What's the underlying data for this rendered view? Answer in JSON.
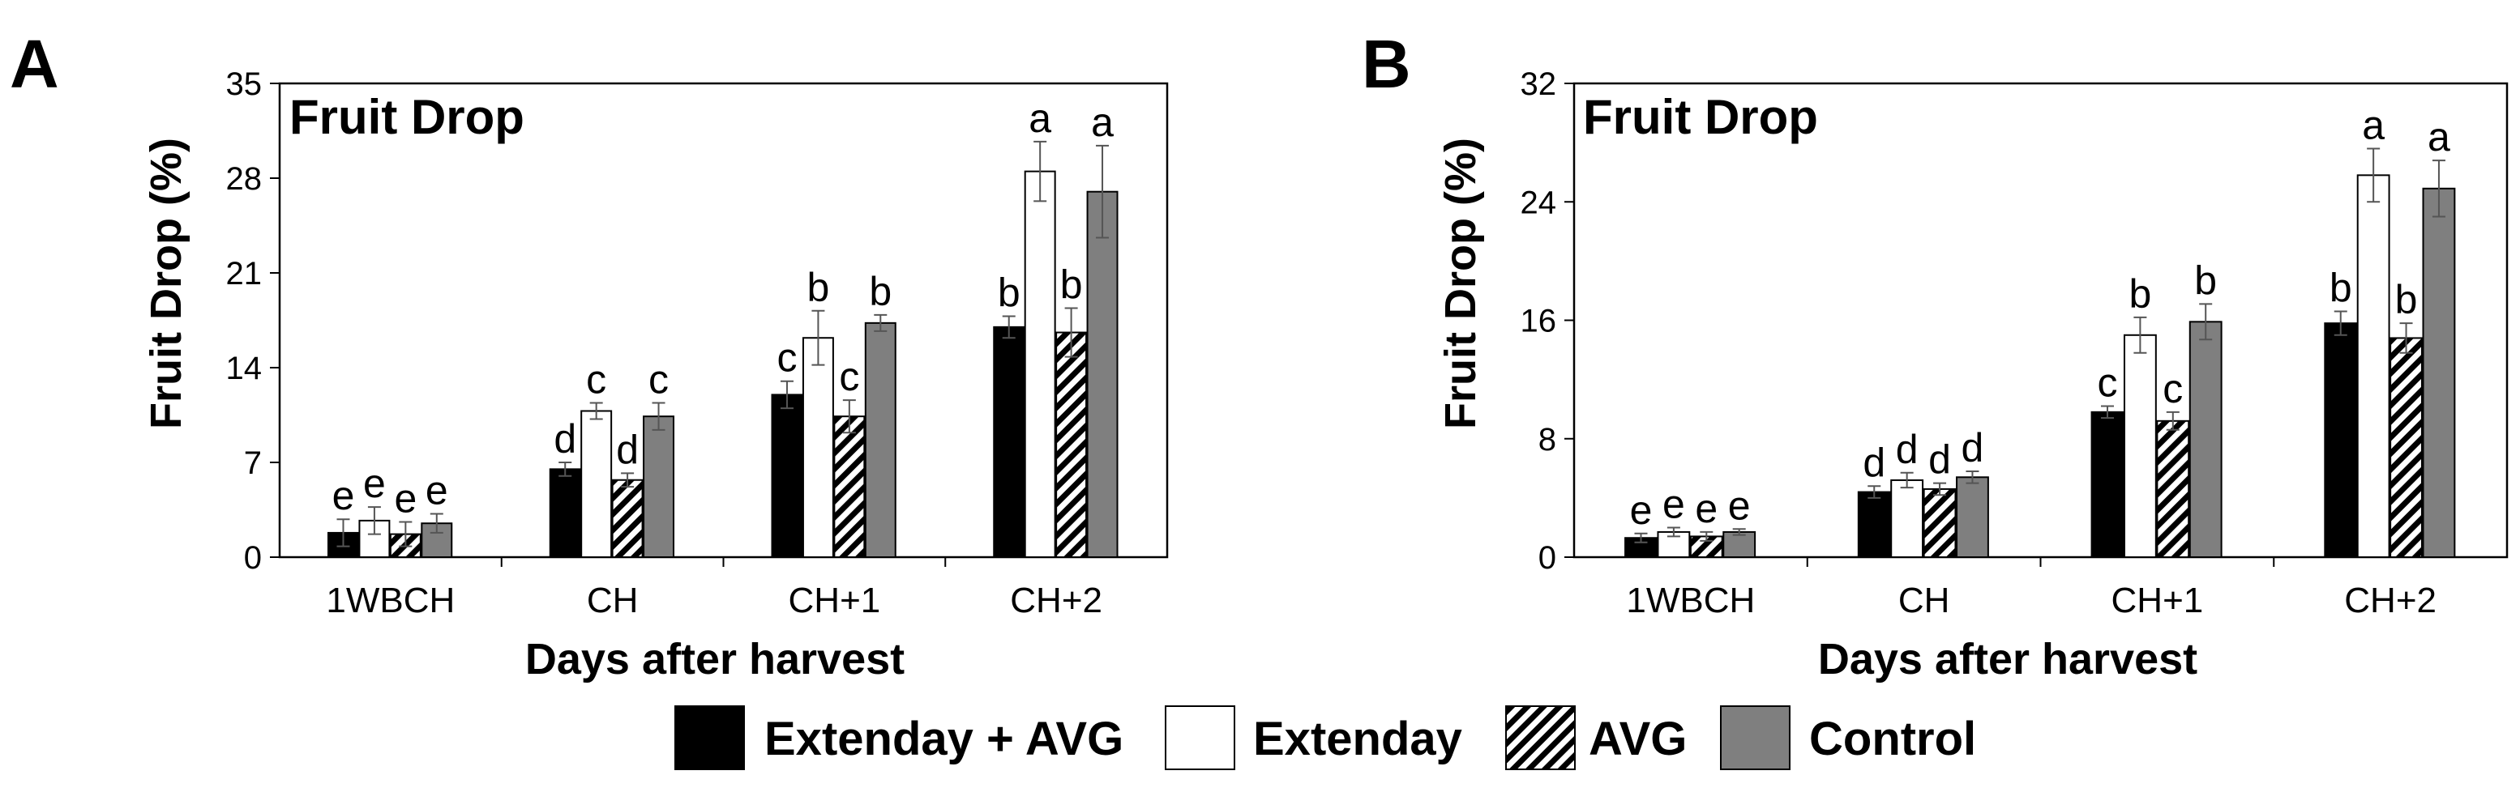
{
  "chart_data": [
    {
      "panel": "A",
      "type": "bar",
      "title": "Fruit Drop",
      "xlabel": "Days after harvest",
      "ylabel": "Fruit Drop (%)",
      "ylim": [
        0,
        35
      ],
      "yticks": [
        0,
        7,
        14,
        21,
        28,
        35
      ],
      "yticklabels": [
        "0",
        "7",
        "14",
        "21",
        "28",
        "35"
      ],
      "categories": [
        "1WBCH",
        "CH",
        "CH+1",
        "CH+2"
      ],
      "series": [
        {
          "name": "Extenday + AVG",
          "values": [
            1.8,
            6.5,
            12.0,
            17.0
          ],
          "errors": [
            1.0,
            0.5,
            1.0,
            0.8
          ],
          "letters": [
            "e",
            "d",
            "c",
            "b"
          ]
        },
        {
          "name": "Extenday",
          "values": [
            2.7,
            10.8,
            16.2,
            28.5
          ],
          "errors": [
            1.0,
            0.6,
            2.0,
            2.2
          ],
          "letters": [
            "e",
            "c",
            "b",
            "a"
          ]
        },
        {
          "name": "AVG",
          "values": [
            1.7,
            5.7,
            10.4,
            16.6
          ],
          "errors": [
            0.9,
            0.5,
            1.2,
            1.8
          ],
          "letters": [
            "e",
            "d",
            "c",
            "b"
          ]
        },
        {
          "name": "Control",
          "values": [
            2.5,
            10.4,
            17.3,
            27.0
          ],
          "errors": [
            0.7,
            1.0,
            0.6,
            3.4
          ],
          "letters": [
            "e",
            "c",
            "b",
            "a"
          ]
        }
      ]
    },
    {
      "panel": "B",
      "type": "bar",
      "title": "Fruit Drop",
      "xlabel": "Days after harvest",
      "ylabel": "Fruit Drop (%)",
      "ylim": [
        0,
        32
      ],
      "yticks": [
        0,
        8,
        16,
        24,
        32
      ],
      "yticklabels": [
        "0",
        "8",
        "16",
        "24",
        "32"
      ],
      "categories": [
        "1WBCH",
        "CH",
        "CH+1",
        "CH+2"
      ],
      "series": [
        {
          "name": "Extenday + AVG",
          "values": [
            1.3,
            4.4,
            9.8,
            15.8
          ],
          "errors": [
            0.3,
            0.4,
            0.4,
            0.8
          ],
          "letters": [
            "e",
            "d",
            "c",
            "b"
          ]
        },
        {
          "name": "Extenday",
          "values": [
            1.7,
            5.2,
            15.0,
            25.8
          ],
          "errors": [
            0.3,
            0.5,
            1.2,
            1.8
          ],
          "letters": [
            "e",
            "d",
            "b",
            "a"
          ]
        },
        {
          "name": "AVG",
          "values": [
            1.4,
            4.6,
            9.2,
            14.8
          ],
          "errors": [
            0.3,
            0.4,
            0.6,
            1.0
          ],
          "letters": [
            "e",
            "d",
            "c",
            "b"
          ]
        },
        {
          "name": "Control",
          "values": [
            1.7,
            5.4,
            15.9,
            24.9
          ],
          "errors": [
            0.2,
            0.4,
            1.2,
            1.9
          ],
          "letters": [
            "e",
            "d",
            "b",
            "a"
          ]
        }
      ]
    }
  ],
  "legend": {
    "placement": "bottom-center",
    "items": [
      {
        "label": "Extenday + AVG",
        "fill": "#000000"
      },
      {
        "label": "Extenday",
        "fill": "#ffffff"
      },
      {
        "label": "AVG",
        "fill": "hatch"
      },
      {
        "label": "Control",
        "fill": "#7f7f7f"
      }
    ]
  },
  "colors": {
    "extenday_avg": "#000000",
    "extenday": "#ffffff",
    "avg_hatch": "#000000",
    "control": "#7f7f7f",
    "axis": "#000000",
    "error_bar": "#555555"
  }
}
